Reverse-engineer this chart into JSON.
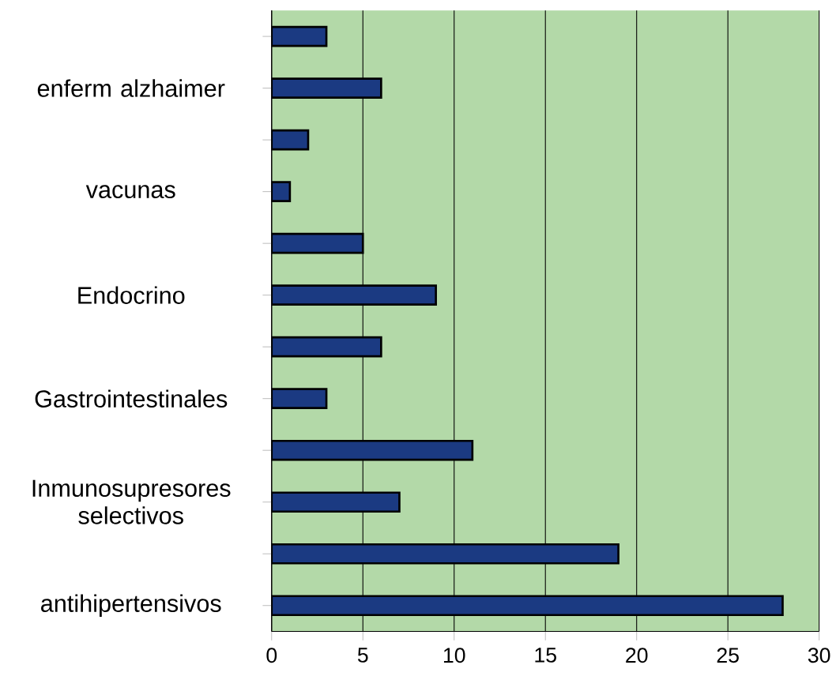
{
  "chart_data": {
    "type": "bar",
    "orientation": "horizontal",
    "categories": [
      null,
      "enferm alzhaimer",
      null,
      "vacunas",
      null,
      "Endocrino",
      null,
      "Gastrointestinales",
      null,
      "Inmunosupresores selectivos",
      null,
      "antihipertensivos"
    ],
    "values": [
      3,
      6,
      2,
      1,
      5,
      9,
      6,
      3,
      11,
      7,
      19,
      28
    ],
    "color": "#1b3a82",
    "xlim": [
      0,
      30
    ],
    "xticks": [
      0,
      5,
      10,
      15,
      20,
      25,
      30
    ],
    "grid": "x"
  }
}
